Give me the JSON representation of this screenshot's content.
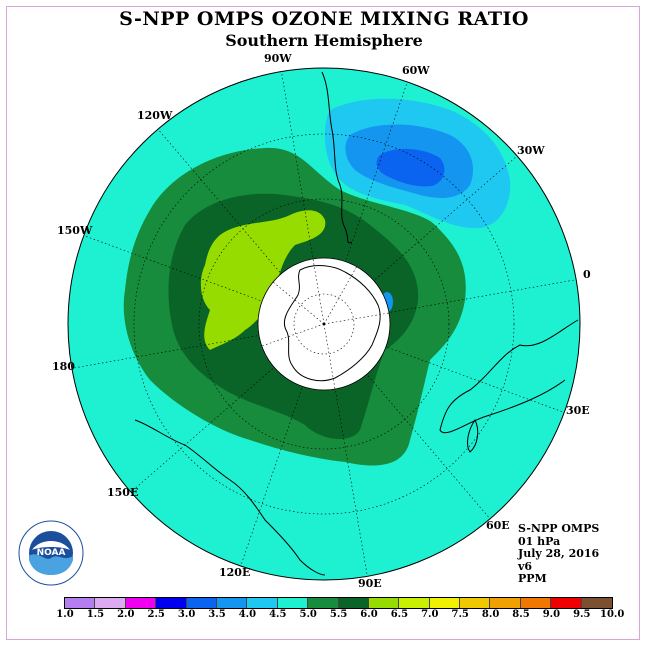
{
  "title": "S-NPP OMPS OZONE MIXING RATIO",
  "subtitle": "Southern Hemisphere",
  "longitude_labels": [
    "90W",
    "60W",
    "30W",
    "0",
    "30E",
    "60E",
    "90E",
    "120E",
    "150E",
    "180",
    "150W",
    "120W"
  ],
  "info": {
    "instrument": "S-NPP OMPS",
    "level": "01 hPa",
    "date": "July 28, 2016",
    "version": "v6",
    "units": "PPM"
  },
  "logo_text": "NOAA",
  "colorbar": {
    "ticks": [
      "1.0",
      "1.5",
      "2.0",
      "2.5",
      "3.0",
      "3.5",
      "4.0",
      "4.5",
      "5.0",
      "5.5",
      "6.0",
      "6.5",
      "7.0",
      "7.5",
      "8.0",
      "8.5",
      "9.0",
      "9.5",
      "10.0"
    ],
    "colors": [
      "#b57ef0",
      "#dcaaf0",
      "#f000f0",
      "#0000f0",
      "#0a64f0",
      "#1496f0",
      "#1ec8f0",
      "#1ef0d2",
      "#168c3c",
      "#0a6428",
      "#96dc00",
      "#c8f000",
      "#f0f000",
      "#f0c800",
      "#f0a000",
      "#f07800",
      "#f00000",
      "#7a5030"
    ]
  }
}
